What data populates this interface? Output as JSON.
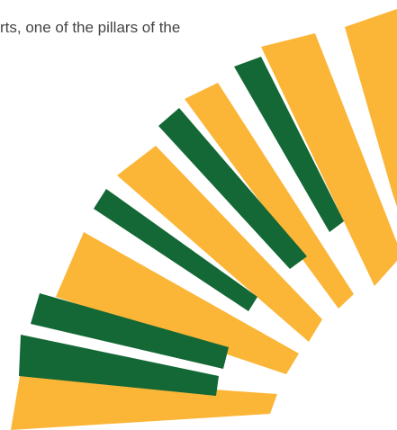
{
  "caption": {
    "text": "rts, one of the pillars of the"
  },
  "graphic": {
    "colors": {
      "yellow": "#FBB537",
      "green": "#136835"
    }
  }
}
